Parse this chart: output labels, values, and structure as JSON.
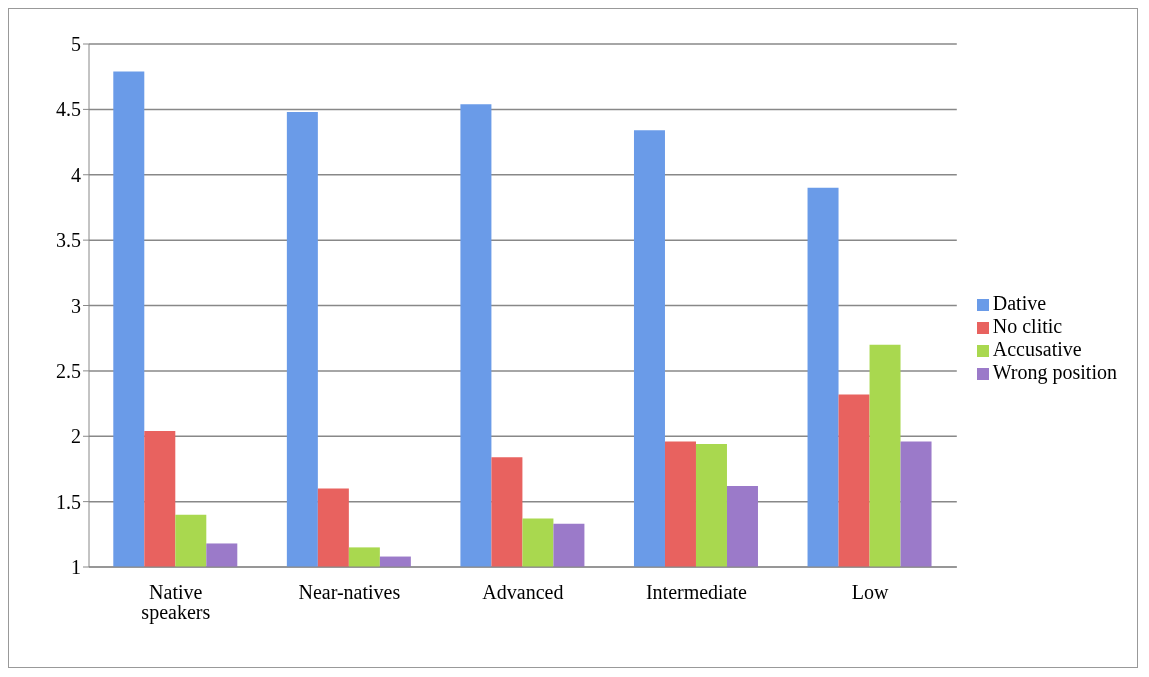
{
  "chart_data": {
    "type": "bar",
    "categories": [
      "Native speakers",
      "Near-natives",
      "Advanced",
      "Intermediate",
      "Low"
    ],
    "series": [
      {
        "name": "Dative",
        "color": "#6a9be8",
        "values": [
          4.79,
          4.48,
          4.54,
          4.34,
          3.9
        ]
      },
      {
        "name": "No clitic",
        "color": "#e8625f",
        "values": [
          2.04,
          1.6,
          1.84,
          1.96,
          2.32
        ]
      },
      {
        "name": "Accusative",
        "color": "#a9d84f",
        "values": [
          1.4,
          1.15,
          1.37,
          1.94,
          2.7
        ]
      },
      {
        "name": "Wrong position",
        "color": "#9b7ac9",
        "values": [
          1.18,
          1.08,
          1.33,
          1.62,
          1.96
        ]
      }
    ],
    "ylim": [
      1,
      5
    ],
    "yticks": [
      1,
      1.5,
      2,
      2.5,
      3,
      3.5,
      4,
      4.5,
      5
    ],
    "grid": "y",
    "legend": "right"
  }
}
